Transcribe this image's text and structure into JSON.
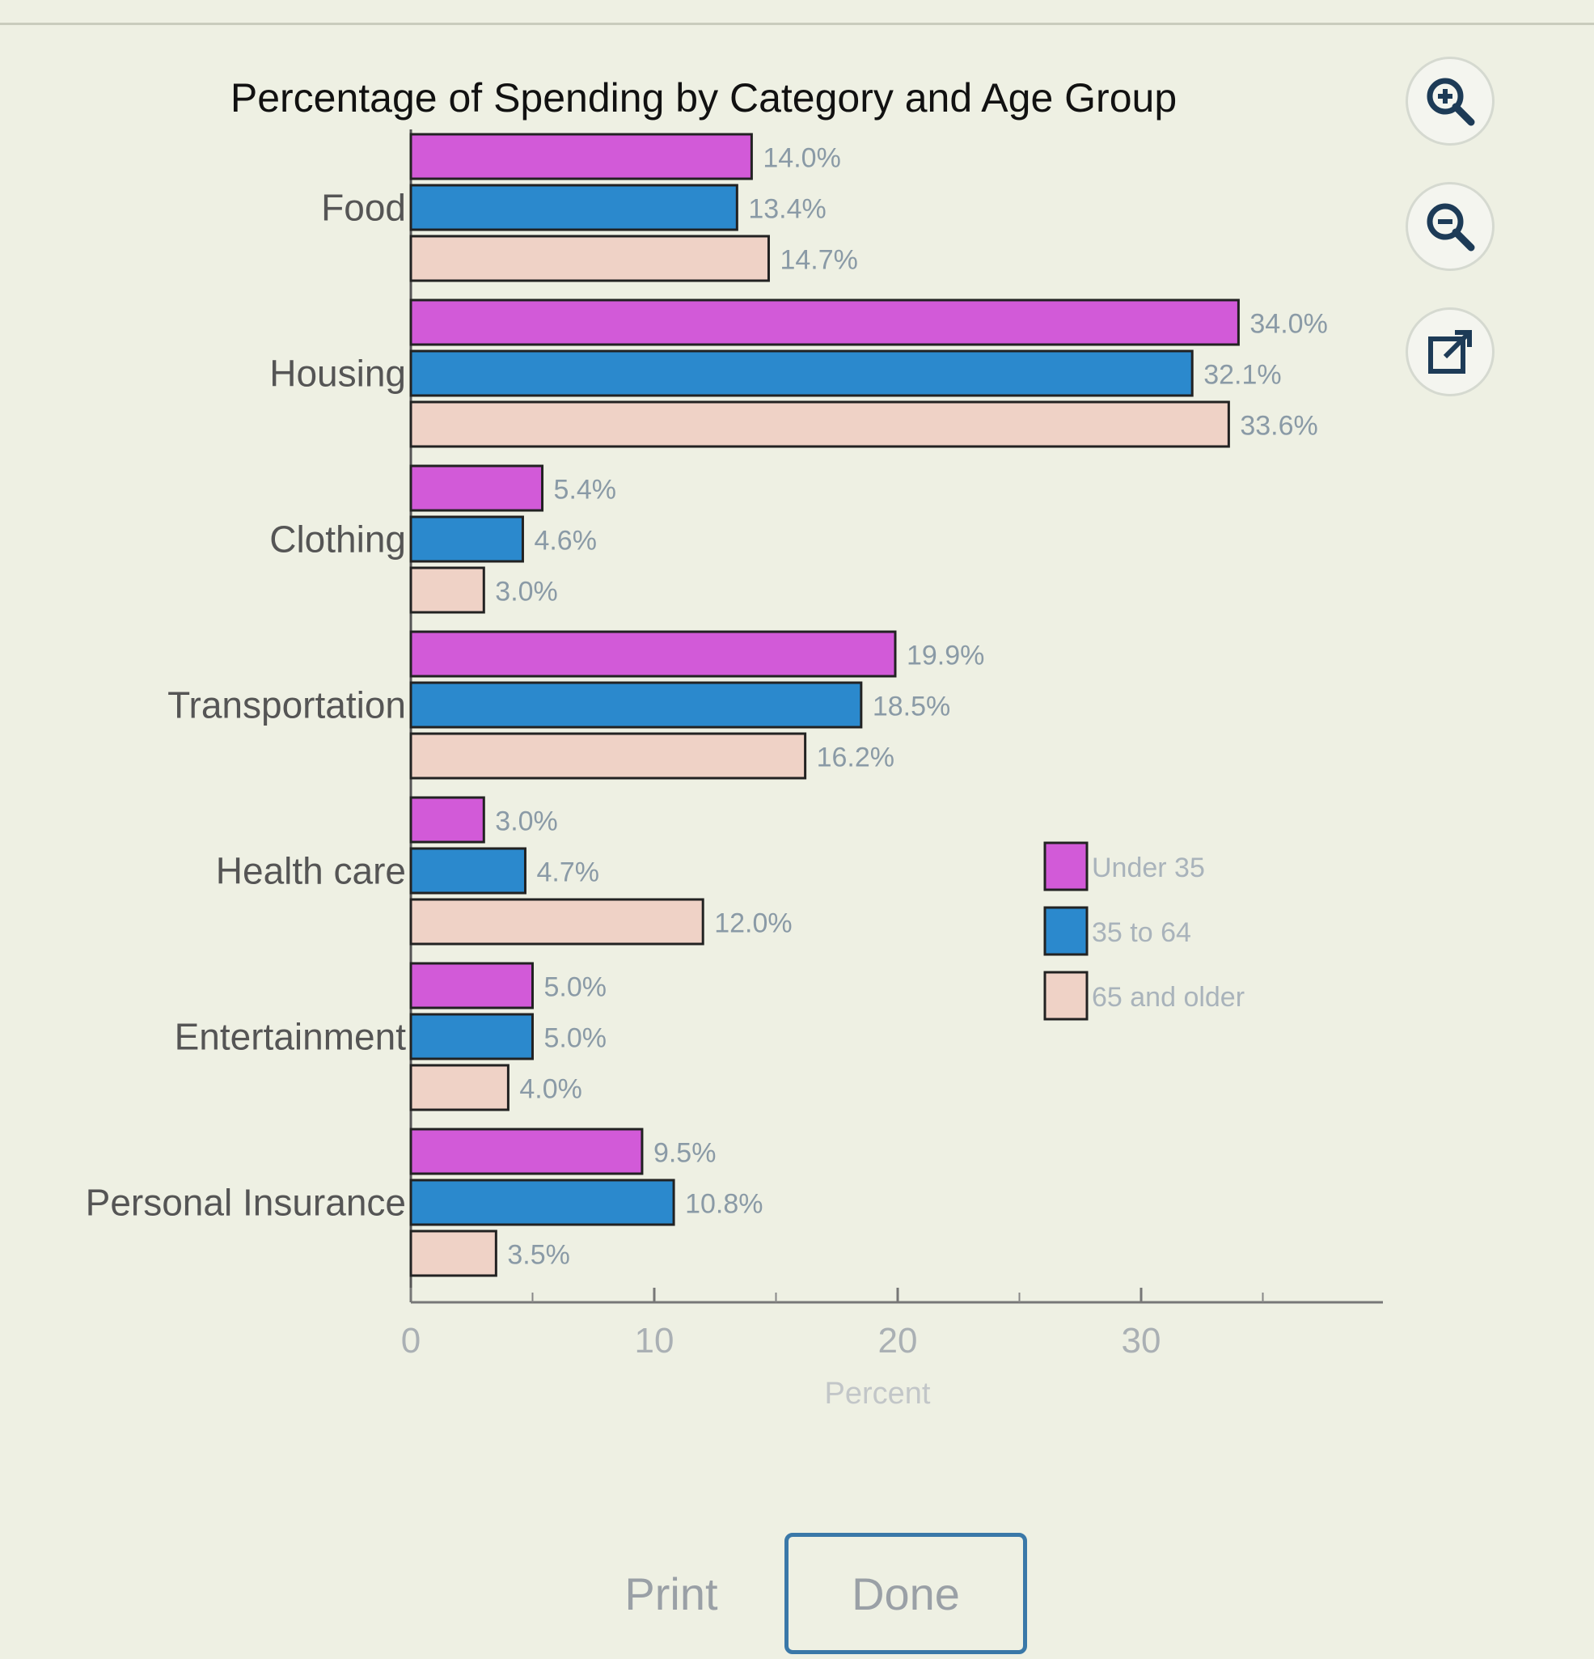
{
  "toolbar": {
    "zoom_in_icon": "zoom-in-icon",
    "zoom_out_icon": "zoom-out-icon",
    "popout_icon": "popout-icon"
  },
  "footer": {
    "print_label": "Print",
    "done_label": "Done"
  },
  "chart_data": {
    "type": "bar",
    "orientation": "horizontal",
    "title": "Percentage of Spending by Category and Age Group",
    "xlabel": "Percent",
    "ylabel": "",
    "xlim": [
      0,
      40
    ],
    "xticks": [
      0,
      10,
      20,
      30
    ],
    "grid": false,
    "legend_position": "right",
    "categories": [
      "Food",
      "Housing",
      "Clothing",
      "Transportation",
      "Health care",
      "Entertainment",
      "Personal Insurance"
    ],
    "series": [
      {
        "name": "Under 35",
        "color": "#d25ad8",
        "values": [
          14.0,
          34.0,
          5.4,
          19.9,
          3.0,
          5.0,
          9.5
        ],
        "labels": [
          "14.0%",
          "34.0%",
          "5.4%",
          "19.9%",
          "3.0%",
          "5.0%",
          "9.5%"
        ]
      },
      {
        "name": "35 to 64",
        "color": "#2b89cd",
        "values": [
          13.4,
          32.1,
          4.6,
          18.5,
          4.7,
          5.0,
          10.8
        ],
        "labels": [
          "13.4%",
          "32.1%",
          "4.6%",
          "18.5%",
          "4.7%",
          "5.0%",
          "10.8%"
        ]
      },
      {
        "name": "65 and older",
        "color": "#efd2c6",
        "values": [
          14.7,
          33.6,
          3.0,
          16.2,
          12.0,
          4.0,
          3.5
        ],
        "labels": [
          "14.7%",
          "33.6%",
          "3.0%",
          "16.2%",
          "12.0%",
          "4.0%",
          "3.5%"
        ]
      }
    ]
  }
}
